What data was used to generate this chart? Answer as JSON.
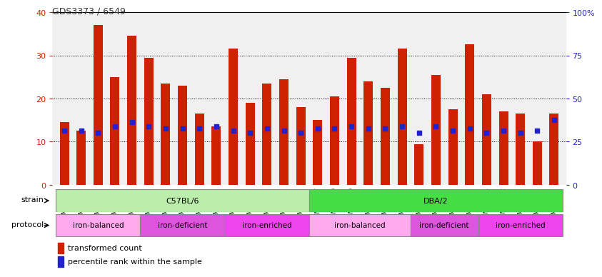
{
  "title": "GDS3373 / 6549",
  "samples": [
    "GSM262762",
    "GSM262765",
    "GSM262768",
    "GSM262769",
    "GSM262770",
    "GSM262796",
    "GSM262797",
    "GSM262798",
    "GSM262799",
    "GSM262800",
    "GSM262771",
    "GSM262772",
    "GSM262773",
    "GSM262794",
    "GSM262795",
    "GSM262817",
    "GSM262819",
    "GSM262820",
    "GSM262839",
    "GSM262840",
    "GSM262950",
    "GSM262951",
    "GSM262952",
    "GSM262953",
    "GSM262954",
    "GSM262841",
    "GSM262842",
    "GSM262843",
    "GSM262844",
    "GSM262845"
  ],
  "red_values": [
    14.5,
    12.5,
    37.0,
    25.0,
    34.5,
    29.5,
    23.5,
    23.0,
    16.5,
    13.5,
    31.5,
    19.0,
    23.5,
    24.5,
    18.0,
    15.0,
    20.5,
    29.5,
    24.0,
    22.5,
    31.5,
    9.5,
    25.5,
    17.5,
    32.5,
    21.0,
    17.0,
    16.5,
    10.0,
    16.5
  ],
  "blue_values": [
    12.5,
    12.5,
    12.0,
    13.5,
    14.5,
    13.5,
    13.0,
    13.0,
    13.0,
    13.5,
    12.5,
    12.0,
    13.0,
    12.5,
    12.0,
    13.0,
    13.0,
    13.5,
    13.0,
    13.0,
    13.5,
    12.0,
    13.5,
    12.5,
    13.0,
    12.0,
    12.5,
    12.0,
    12.5,
    15.0
  ],
  "strain_groups": [
    {
      "label": "C57BL/6",
      "start": 0,
      "end": 15,
      "color": "#BBEEAA"
    },
    {
      "label": "DBA/2",
      "start": 15,
      "end": 30,
      "color": "#44DD44"
    }
  ],
  "protocol_groups": [
    {
      "label": "iron-balanced",
      "start": 0,
      "end": 5,
      "color": "#FFAAEE"
    },
    {
      "label": "iron-deficient",
      "start": 5,
      "end": 10,
      "color": "#DD55DD"
    },
    {
      "label": "iron-enriched",
      "start": 10,
      "end": 15,
      "color": "#EE44EE"
    },
    {
      "label": "iron-balanced",
      "start": 15,
      "end": 21,
      "color": "#FFAAEE"
    },
    {
      "label": "iron-deficient",
      "start": 21,
      "end": 25,
      "color": "#DD55DD"
    },
    {
      "label": "iron-enriched",
      "start": 25,
      "end": 30,
      "color": "#EE44EE"
    }
  ],
  "ylim_left": [
    0,
    40
  ],
  "ylim_right": [
    0,
    100
  ],
  "yticks_left": [
    0,
    10,
    20,
    30,
    40
  ],
  "yticks_right": [
    0,
    25,
    50,
    75,
    100
  ],
  "bar_color_red": "#CC2200",
  "bar_color_blue": "#2222CC",
  "title_color": "#333333",
  "left_axis_color": "#CC2200",
  "right_axis_color": "#2222CC",
  "background_color": "#FFFFFF",
  "legend_red": "transformed count",
  "legend_blue": "percentile rank within the sample",
  "bar_width": 0.55
}
